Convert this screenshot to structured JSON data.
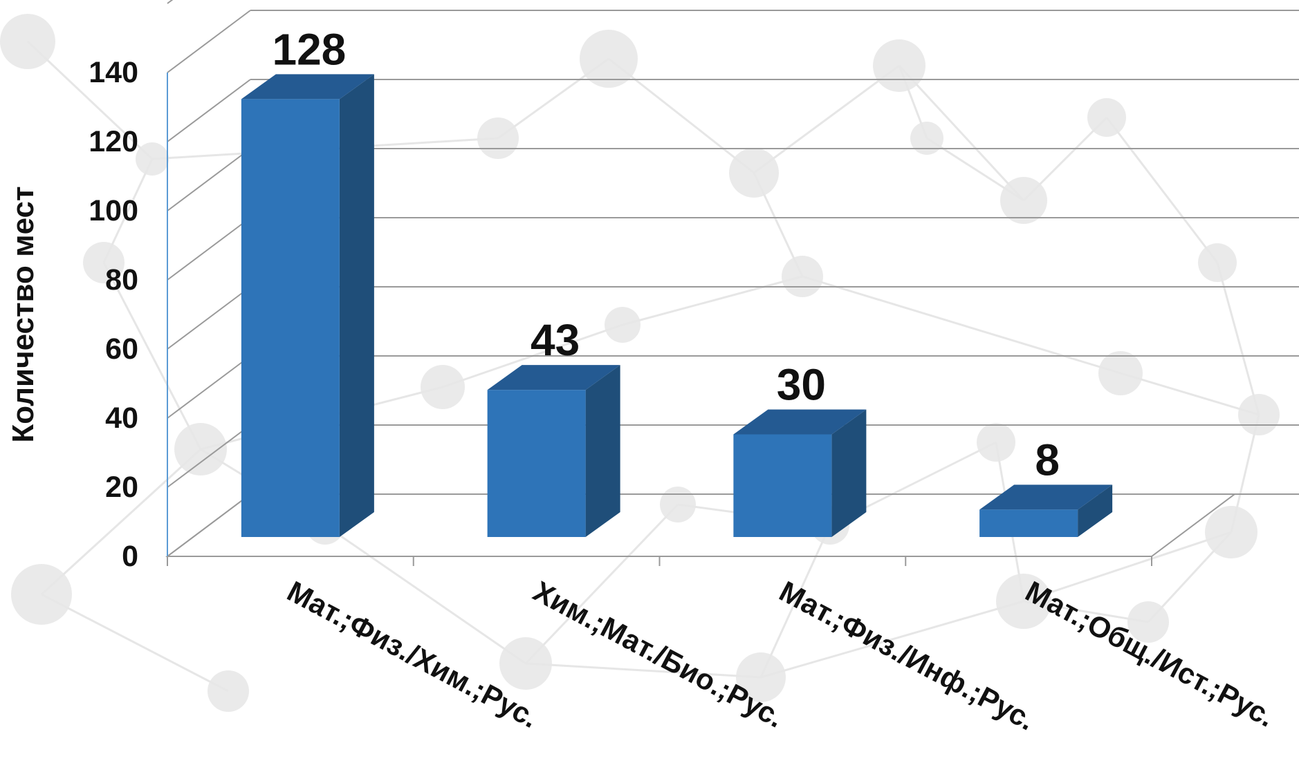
{
  "chart_data": {
    "type": "bar",
    "style": "3d-column",
    "categories": [
      "Мат.;Физ./Хим.;Рус.",
      "Хим.;Мат./Био.;Рус.",
      "Мат.;Физ./Инф.;Рус.",
      "Мат.;Общ./Ист.;Рус."
    ],
    "values": [
      128,
      43,
      30,
      8
    ],
    "data_labels": [
      "128",
      "43",
      "30",
      "8"
    ],
    "ylabel": "Количество мест",
    "xlabel": "",
    "ylim": [
      0,
      140
    ],
    "yticks": [
      "0",
      "20",
      "40",
      "60",
      "80",
      "100",
      "120",
      "140"
    ],
    "grid": true,
    "legend": "none",
    "colors": {
      "bar_front": "#2E74B8",
      "bar_side": "#1F4E79",
      "bar_top": "#245A92",
      "gridline": "#9A9A9A",
      "axis": "#5B9BD5",
      "background_pattern": "#E6E6E6"
    }
  }
}
